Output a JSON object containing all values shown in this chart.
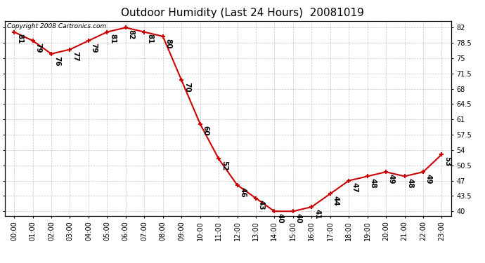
{
  "title": "Outdoor Humidity (Last 24 Hours)  20081019",
  "copyright_text": "Copyright 2008 Cartronics.com",
  "hours": [
    "00:00",
    "01:00",
    "02:00",
    "03:00",
    "04:00",
    "05:00",
    "06:00",
    "07:00",
    "08:00",
    "09:00",
    "10:00",
    "11:00",
    "12:00",
    "13:00",
    "14:00",
    "15:00",
    "16:00",
    "17:00",
    "18:00",
    "19:00",
    "20:00",
    "21:00",
    "22:00",
    "23:00"
  ],
  "values": [
    81,
    79,
    76,
    77,
    79,
    81,
    82,
    81,
    80,
    70,
    60,
    52,
    46,
    43,
    40,
    40,
    41,
    44,
    47,
    48,
    49,
    48,
    49,
    53
  ],
  "yticks": [
    40.0,
    43.5,
    47.0,
    50.5,
    54.0,
    57.5,
    61.0,
    64.5,
    68.0,
    71.5,
    75.0,
    78.5,
    82.0
  ],
  "ylim": [
    39.0,
    83.5
  ],
  "line_color": "#cc0000",
  "background_color": "#ffffff",
  "grid_color": "#bbbbbb",
  "title_fontsize": 11,
  "label_fontsize": 7.5,
  "tick_fontsize": 7,
  "copyright_fontsize": 6.5
}
